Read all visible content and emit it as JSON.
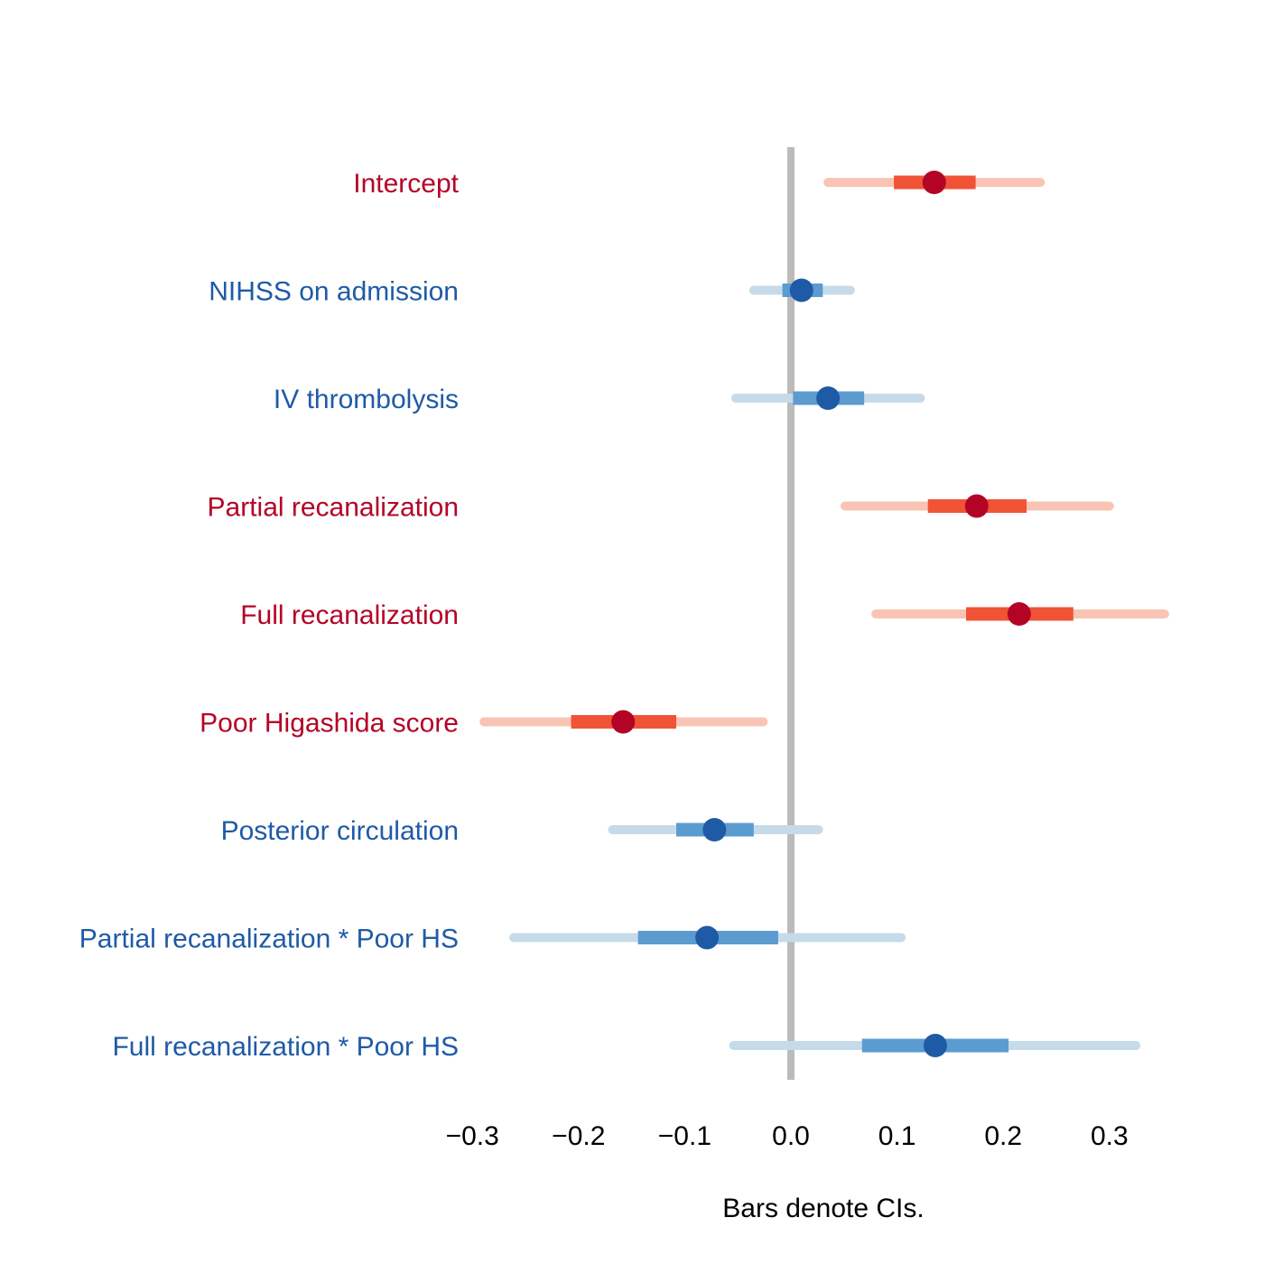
{
  "chart_data": {
    "type": "forest",
    "xlabel": "Bars denote CIs.",
    "xlim": [
      -0.3,
      0.35
    ],
    "xticks": [
      -0.3,
      -0.2,
      -0.1,
      0.0,
      0.1,
      0.2,
      0.3
    ],
    "xtick_labels": [
      "−0.3",
      "−0.2",
      "−0.1",
      "0.0",
      "0.1",
      "0.2",
      "0.3"
    ],
    "reference_line": 0.0,
    "grid": false,
    "colors": {
      "positive": {
        "point": "#b40426",
        "inner": "#f05336",
        "outer": "#f9c4b4",
        "label": "#b40426"
      },
      "negative": {
        "point": "#1f5aa6",
        "inner": "#5b9bd0",
        "outer": "#c6dbe9",
        "label": "#1f5aa6"
      },
      "reference": "#bbbbbb"
    },
    "terms": [
      {
        "label": "Intercept",
        "estimate": 0.135,
        "inner": [
          0.097,
          0.174
        ],
        "outer": [
          0.035,
          0.235
        ],
        "sign": "positive"
      },
      {
        "label": "NIHSS on admission",
        "estimate": 0.01,
        "inner": [
          -0.008,
          0.03
        ],
        "outer": [
          -0.035,
          0.056
        ],
        "sign": "negative"
      },
      {
        "label": "IV thrombolysis",
        "estimate": 0.035,
        "inner": [
          0.002,
          0.069
        ],
        "outer": [
          -0.052,
          0.122
        ],
        "sign": "negative"
      },
      {
        "label": "Partial recanalization",
        "estimate": 0.175,
        "inner": [
          0.129,
          0.222
        ],
        "outer": [
          0.051,
          0.3
        ],
        "sign": "positive"
      },
      {
        "label": "Full recanalization",
        "estimate": 0.215,
        "inner": [
          0.165,
          0.266
        ],
        "outer": [
          0.08,
          0.352
        ],
        "sign": "positive"
      },
      {
        "label": "Poor Higashida score",
        "estimate": -0.158,
        "inner": [
          -0.207,
          -0.108
        ],
        "outer": [
          -0.289,
          -0.026
        ],
        "sign": "positive"
      },
      {
        "label": "Posterior circulation",
        "estimate": -0.072,
        "inner": [
          -0.108,
          -0.035
        ],
        "outer": [
          -0.168,
          0.026
        ],
        "sign": "negative"
      },
      {
        "label": "Partial recanalization * Poor HS",
        "estimate": -0.079,
        "inner": [
          -0.144,
          -0.012
        ],
        "outer": [
          -0.261,
          0.104
        ],
        "sign": "negative"
      },
      {
        "label": "Full recanalization * Poor HS",
        "estimate": 0.136,
        "inner": [
          0.067,
          0.205
        ],
        "outer": [
          -0.054,
          0.325
        ],
        "sign": "negative"
      }
    ]
  }
}
